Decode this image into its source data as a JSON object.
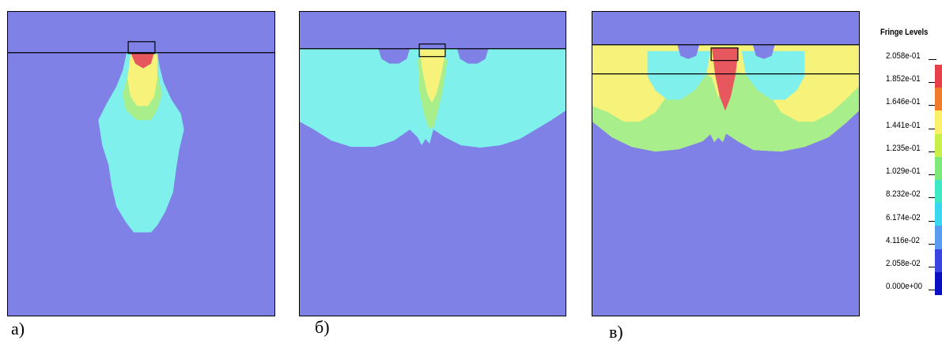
{
  "panels": [
    {
      "label": "a)"
    },
    {
      "label": "б)"
    },
    {
      "label": "в)"
    }
  ],
  "legend": {
    "title": "Fringe Levels",
    "levels": [
      "2.058e-01",
      "1.852e-01",
      "1.646e-01",
      "1.441e-01",
      "1.235e-01",
      "1.029e-01",
      "8.232e-02",
      "6.174e-02",
      "4.116e-02",
      "2.058e-02",
      "0.000e+00"
    ],
    "colors": [
      "#e8404a",
      "#f07c2c",
      "#fbf06a",
      "#c9f04a",
      "#7ee878",
      "#3ee8c4",
      "#3ad8f0",
      "#5a9cf0",
      "#3a44e0",
      "#0a10c0"
    ]
  },
  "colors": {
    "background_field": "#7f81e6",
    "cyan_field": "#7ff0ec",
    "yellow_field": "#f6f27a",
    "green_field": "#a8ee8a",
    "red_field": "#e7585e"
  }
}
